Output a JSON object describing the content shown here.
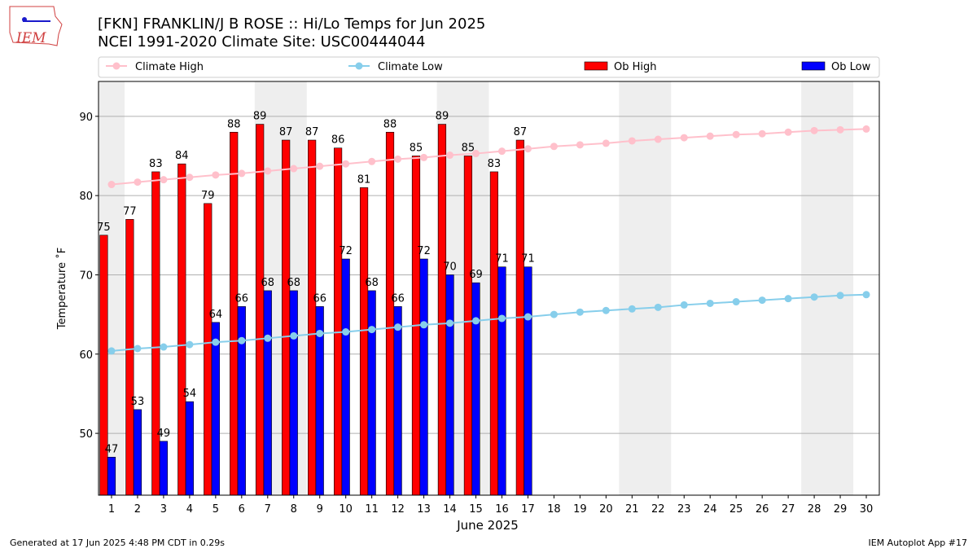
{
  "chart_data": {
    "type": "bar_line",
    "title": "[FKN] FRANKLIN/J B ROSE :: Hi/Lo Temps for Jun 2025",
    "subtitle": "NCEI 1991-2020 Climate Site: USC00444044",
    "x_label": "June 2025",
    "y_label": "Temperature ˚F",
    "footer_left": "Generated at 17 Jun 2025 4:48 PM CDT in 0.29s",
    "footer_right": "IEM Autoplot App #17",
    "logo_text": "IEM",
    "x": [
      1,
      2,
      3,
      4,
      5,
      6,
      7,
      8,
      9,
      10,
      11,
      12,
      13,
      14,
      15,
      16,
      17,
      18,
      19,
      20,
      21,
      22,
      23,
      24,
      25,
      26,
      27,
      28,
      29,
      30
    ],
    "xlim": [
      0.5,
      30.5
    ],
    "xticks": [
      1,
      2,
      3,
      4,
      5,
      6,
      7,
      8,
      9,
      10,
      11,
      12,
      13,
      14,
      15,
      16,
      17,
      18,
      19,
      20,
      21,
      22,
      23,
      24,
      25,
      26,
      27,
      28,
      29,
      30
    ],
    "ylim": [
      42.2,
      94.4
    ],
    "yticks": [
      50,
      60,
      70,
      80,
      90
    ],
    "grid": true,
    "shaded_spans": [
      [
        0.5,
        1.5
      ],
      [
        6.5,
        8.5
      ],
      [
        13.5,
        15.5
      ],
      [
        20.5,
        22.5
      ],
      [
        27.5,
        29.5
      ]
    ],
    "series": [
      {
        "name": "Climate High",
        "kind": "line",
        "color": "#ffc0cb",
        "values": [
          81.4,
          81.7,
          82.0,
          82.3,
          82.6,
          82.8,
          83.1,
          83.4,
          83.7,
          84.0,
          84.3,
          84.6,
          84.8,
          85.1,
          85.3,
          85.6,
          85.9,
          86.2,
          86.4,
          86.6,
          86.9,
          87.1,
          87.3,
          87.5,
          87.7,
          87.8,
          88.0,
          88.2,
          88.3,
          88.4
        ]
      },
      {
        "name": "Climate Low",
        "kind": "line",
        "color": "#87ceeb",
        "values": [
          60.4,
          60.7,
          60.9,
          61.2,
          61.5,
          61.7,
          62.0,
          62.3,
          62.6,
          62.8,
          63.1,
          63.4,
          63.7,
          63.9,
          64.2,
          64.5,
          64.7,
          65.0,
          65.3,
          65.5,
          65.7,
          65.9,
          66.2,
          66.4,
          66.6,
          66.8,
          67.0,
          67.2,
          67.4,
          67.5
        ]
      },
      {
        "name": "Ob High",
        "kind": "bar",
        "color": "#ff0000",
        "values": [
          75,
          77,
          83,
          84,
          79,
          88,
          89,
          87,
          87,
          86,
          81,
          88,
          85,
          89,
          85,
          83,
          87,
          null,
          null,
          null,
          null,
          null,
          null,
          null,
          null,
          null,
          null,
          null,
          null,
          null
        ]
      },
      {
        "name": "Ob Low",
        "kind": "bar",
        "color": "#0000ff",
        "values": [
          47,
          53,
          49,
          54,
          64,
          66,
          68,
          68,
          66,
          72,
          68,
          66,
          72,
          70,
          69,
          71,
          71,
          null,
          null,
          null,
          null,
          null,
          null,
          null,
          null,
          null,
          null,
          null,
          null,
          null
        ]
      }
    ]
  }
}
